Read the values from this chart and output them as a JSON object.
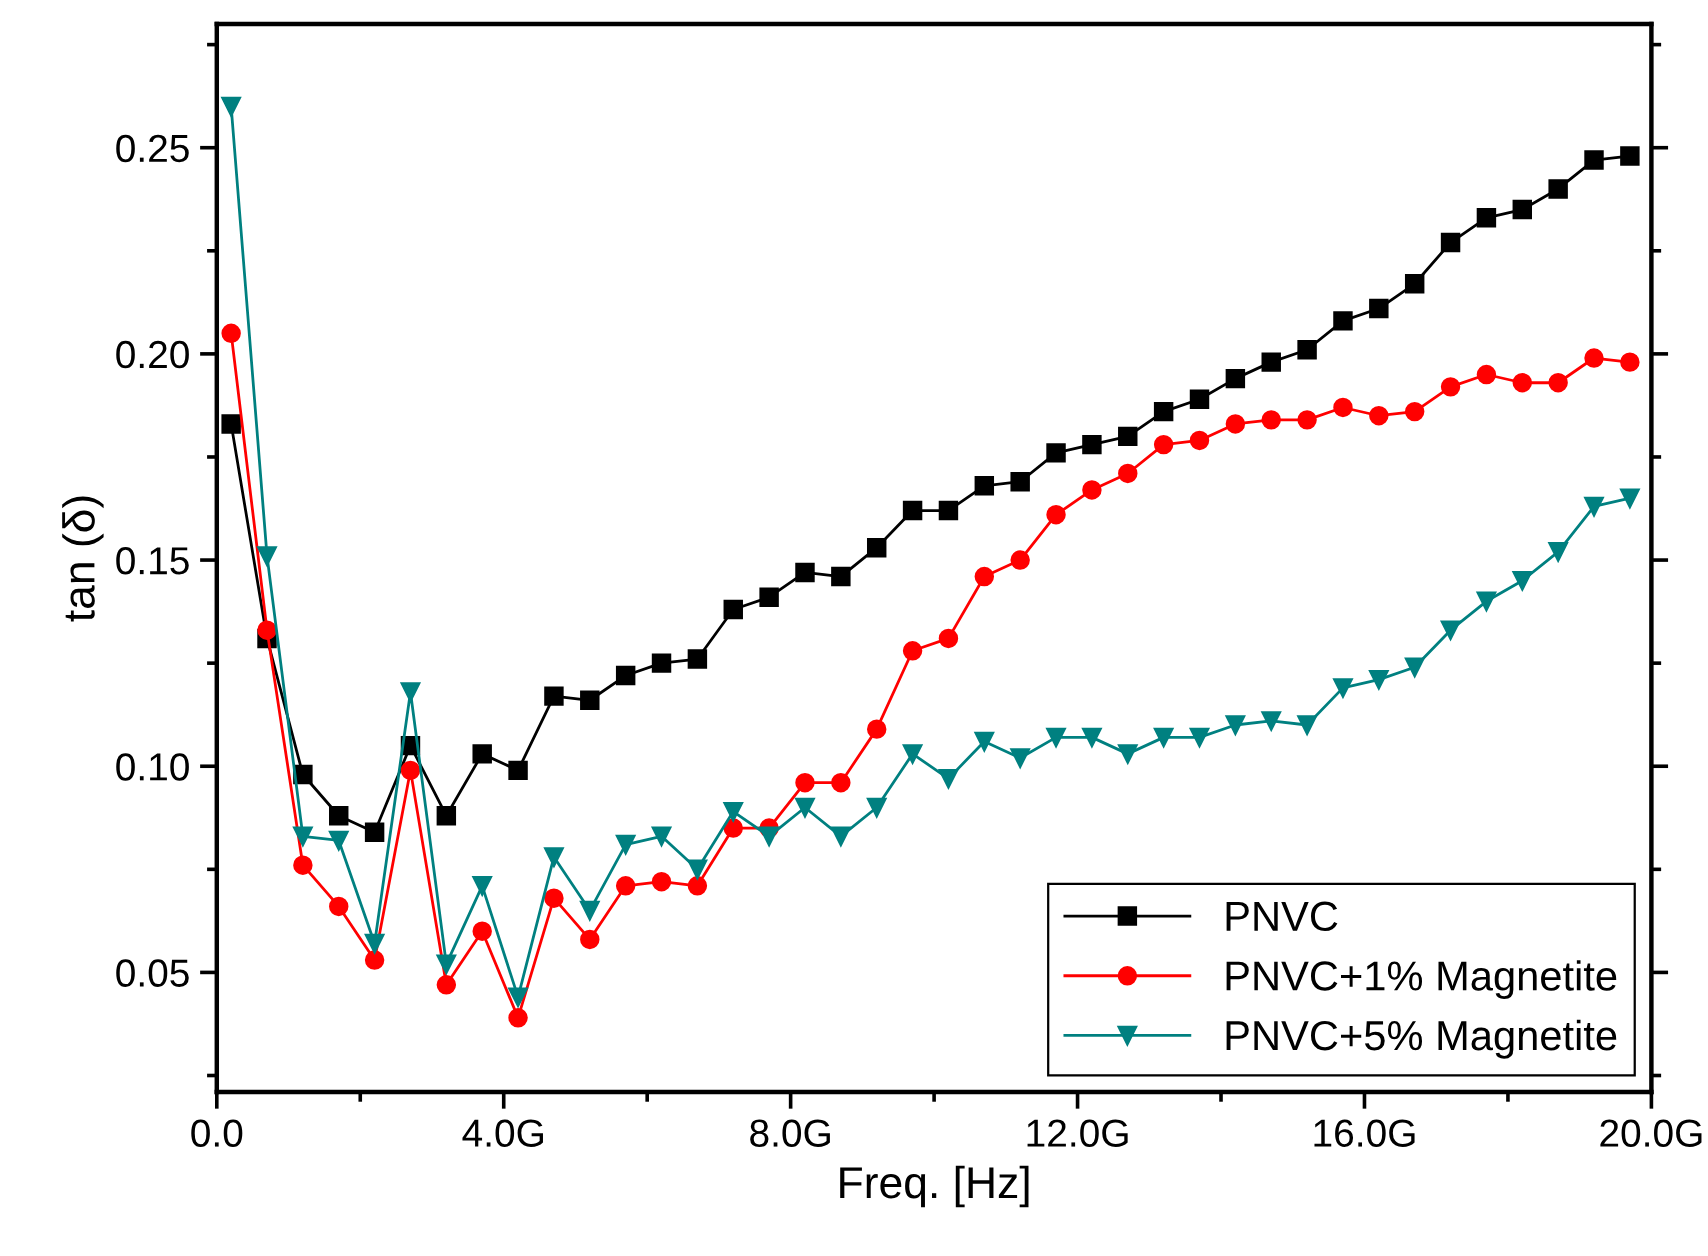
{
  "chart_data": {
    "type": "line",
    "xlabel": "Freq. [Hz]",
    "ylabel": "tan (δ)",
    "x": [
      0.2,
      0.7,
      1.2,
      1.7,
      2.2,
      2.7,
      3.2,
      3.7,
      4.2,
      4.7,
      5.2,
      5.7,
      6.2,
      6.7,
      7.2,
      7.7,
      8.2,
      8.7,
      9.2,
      9.7,
      10.2,
      10.7,
      11.2,
      11.7,
      12.2,
      12.7,
      13.2,
      13.7,
      14.2,
      14.7,
      15.2,
      15.7,
      16.2,
      16.7,
      17.2,
      17.7,
      18.2,
      18.7,
      19.2,
      19.7
    ],
    "series": [
      {
        "name": "PNVC",
        "color": "#000000",
        "marker": "square",
        "values": [
          0.183,
          0.131,
          0.098,
          0.088,
          0.084,
          0.105,
          0.088,
          0.103,
          0.099,
          0.117,
          0.116,
          0.122,
          0.125,
          0.126,
          0.138,
          0.141,
          0.147,
          0.146,
          0.153,
          0.162,
          0.162,
          0.168,
          0.169,
          0.176,
          0.178,
          0.18,
          0.186,
          0.189,
          0.194,
          0.198,
          0.201,
          0.208,
          0.211,
          0.217,
          0.227,
          0.233,
          0.235,
          0.24,
          0.247,
          0.248
        ]
      },
      {
        "name": "PNVC+1% Magnetite",
        "color": "#ff0000",
        "marker": "circle",
        "values": [
          0.205,
          0.133,
          0.076,
          0.066,
          0.053,
          0.099,
          0.047,
          0.06,
          0.039,
          0.068,
          0.058,
          0.071,
          0.072,
          0.071,
          0.085,
          0.085,
          0.096,
          0.096,
          0.109,
          0.128,
          0.131,
          0.146,
          0.15,
          0.161,
          0.167,
          0.171,
          0.178,
          0.179,
          0.183,
          0.184,
          0.184,
          0.187,
          0.185,
          0.186,
          0.192,
          0.195,
          0.193,
          0.193,
          0.199,
          0.198
        ]
      },
      {
        "name": "PNVC+5% Magnetite",
        "color": "#008080",
        "marker": "triangle",
        "values": [
          0.26,
          0.151,
          0.083,
          0.082,
          0.057,
          0.118,
          0.052,
          0.071,
          0.044,
          0.078,
          0.065,
          0.081,
          0.083,
          0.075,
          0.089,
          0.083,
          0.09,
          0.083,
          0.09,
          0.103,
          0.097,
          0.106,
          0.102,
          0.107,
          0.107,
          0.103,
          0.107,
          0.107,
          0.11,
          0.111,
          0.11,
          0.119,
          0.121,
          0.124,
          0.133,
          0.14,
          0.145,
          0.152,
          0.163,
          0.165
        ]
      }
    ],
    "xlim": [
      0,
      20
    ],
    "xticks": [
      {
        "value": 0,
        "label": "0.0"
      },
      {
        "value": 2,
        "label": null
      },
      {
        "value": 4,
        "label": "4.0G"
      },
      {
        "value": 6,
        "label": null
      },
      {
        "value": 8,
        "label": "8.0G"
      },
      {
        "value": 10,
        "label": null
      },
      {
        "value": 12,
        "label": "12.0G"
      },
      {
        "value": 14,
        "label": null
      },
      {
        "value": 16,
        "label": "16.0G"
      },
      {
        "value": 18,
        "label": null
      },
      {
        "value": 20,
        "label": "20.0G"
      }
    ],
    "ylim": [
      0.021,
      0.28
    ],
    "yticks": [
      {
        "value": 0.025,
        "label": null
      },
      {
        "value": 0.05,
        "label": "0.05"
      },
      {
        "value": 0.075,
        "label": null
      },
      {
        "value": 0.1,
        "label": "0.10"
      },
      {
        "value": 0.125,
        "label": null
      },
      {
        "value": 0.15,
        "label": "0.15"
      },
      {
        "value": 0.175,
        "label": null
      },
      {
        "value": 0.2,
        "label": "0.20"
      },
      {
        "value": 0.225,
        "label": null
      },
      {
        "value": 0.25,
        "label": "0.25"
      },
      {
        "value": 0.275,
        "label": null
      }
    ],
    "grid": false,
    "legend": "bottom right",
    "line_style": "solid"
  }
}
